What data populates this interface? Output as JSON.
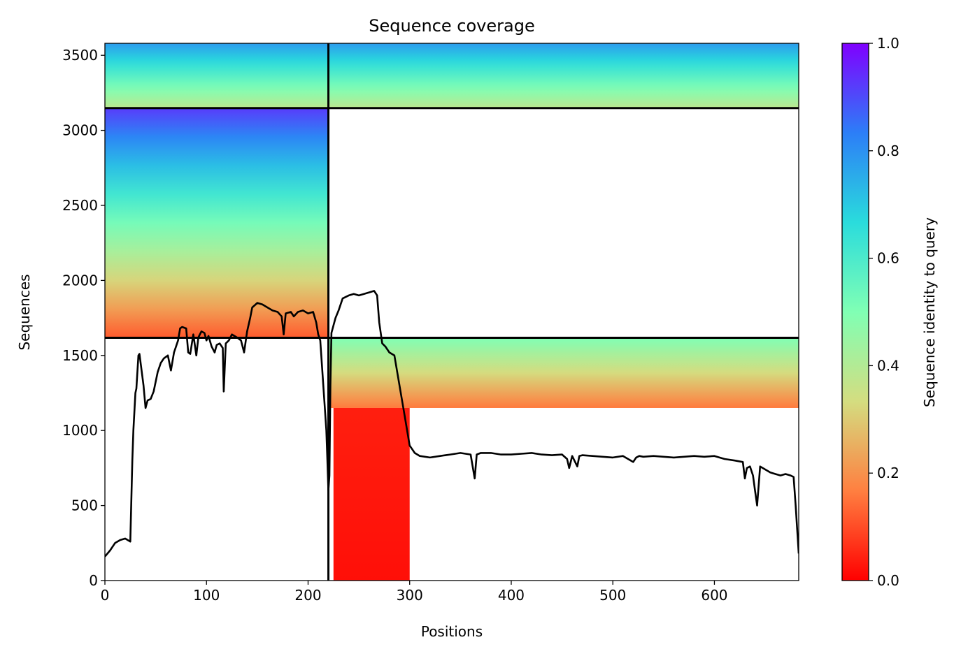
{
  "chart_data": {
    "type": "heatmap",
    "title": "Sequence coverage",
    "xlabel": "Positions",
    "ylabel": "Sequences",
    "xlim": [
      0,
      683
    ],
    "ylim": [
      0,
      3580
    ],
    "x_ticks": [
      0,
      100,
      200,
      300,
      400,
      500,
      600
    ],
    "y_ticks": [
      0,
      500,
      1000,
      1500,
      2000,
      2500,
      3000,
      3500
    ],
    "grid": false,
    "colormap": "rainbow_r",
    "colorbar": {
      "label": "Sequence identity to query",
      "range": [
        0,
        1
      ],
      "ticks": [
        "0.0",
        "0.2",
        "0.4",
        "0.6",
        "0.8",
        "1.0"
      ],
      "colors": [
        "#ff0000",
        "#ff7f40",
        "#d4dd80",
        "#80ffb4",
        "#2adcdc",
        "#2c7ef7",
        "#8000ff"
      ]
    },
    "divider_lines": {
      "color": "#000000",
      "vertical_x": [
        220
      ],
      "horizontal_y": [
        1618,
        3148
      ]
    },
    "coverage_blocks": [
      {
        "x0": 0,
        "x1": 220,
        "y0": 3148,
        "y1": 3580,
        "identity_range": [
          0.38,
          0.78
        ]
      },
      {
        "x0": 220,
        "x1": 683,
        "y0": 3148,
        "y1": 3580,
        "identity_range": [
          0.38,
          0.78
        ]
      },
      {
        "x0": 0,
        "x1": 220,
        "y0": 1618,
        "y1": 3148,
        "identity_range": [
          0.12,
          0.92
        ]
      },
      {
        "x0": 220,
        "x1": 683,
        "y0": 1150,
        "y1": 1618,
        "identity_range": [
          0.16,
          0.5
        ]
      },
      {
        "x0": 225,
        "x1": 300,
        "y0": 0,
        "y1": 1150,
        "identity_range": [
          0.02,
          0.04
        ]
      }
    ],
    "coverage_line": {
      "color": "#000000",
      "x": [
        0,
        5,
        10,
        15,
        20,
        25,
        27,
        28,
        30,
        31,
        33,
        34,
        38,
        40,
        42,
        45,
        48,
        52,
        55,
        58,
        62,
        65,
        68,
        70,
        72,
        74,
        76,
        80,
        82,
        84,
        87,
        90,
        92,
        95,
        98,
        100,
        102,
        105,
        108,
        110,
        113,
        116,
        117,
        119,
        122,
        125,
        130,
        134,
        137,
        140,
        143,
        145,
        150,
        155,
        160,
        165,
        170,
        174,
        176,
        178,
        183,
        186,
        190,
        195,
        200,
        205,
        208,
        210,
        212,
        214,
        216,
        218,
        219,
        220,
        221,
        222,
        223,
        225,
        227,
        230,
        234,
        240,
        245,
        250,
        255,
        260,
        265,
        268,
        270,
        273,
        276,
        280,
        285,
        290,
        295,
        300,
        305,
        310,
        320,
        330,
        340,
        350,
        360,
        364,
        366,
        370,
        380,
        390,
        400,
        410,
        420,
        430,
        440,
        450,
        455,
        457,
        460,
        465,
        467,
        470,
        480,
        490,
        500,
        510,
        520,
        523,
        526,
        530,
        540,
        550,
        560,
        570,
        580,
        590,
        600,
        610,
        620,
        628,
        630,
        632,
        635,
        638,
        640,
        642,
        645,
        650,
        655,
        660,
        665,
        670,
        675,
        678,
        680,
        683
      ],
      "y": [
        160,
        200,
        250,
        270,
        280,
        260,
        800,
        1000,
        1250,
        1280,
        1500,
        1510,
        1300,
        1150,
        1200,
        1210,
        1260,
        1390,
        1450,
        1480,
        1500,
        1400,
        1520,
        1560,
        1600,
        1680,
        1690,
        1680,
        1520,
        1510,
        1640,
        1500,
        1620,
        1660,
        1650,
        1600,
        1630,
        1560,
        1520,
        1570,
        1580,
        1550,
        1260,
        1580,
        1600,
        1640,
        1620,
        1600,
        1520,
        1660,
        1750,
        1820,
        1850,
        1840,
        1820,
        1800,
        1790,
        1760,
        1640,
        1780,
        1790,
        1760,
        1790,
        1800,
        1780,
        1790,
        1720,
        1640,
        1600,
        1400,
        1200,
        1000,
        800,
        600,
        700,
        1300,
        1650,
        1700,
        1750,
        1800,
        1880,
        1900,
        1910,
        1900,
        1910,
        1920,
        1930,
        1900,
        1720,
        1580,
        1560,
        1520,
        1500,
        1300,
        1100,
        900,
        850,
        830,
        820,
        830,
        840,
        850,
        840,
        680,
        840,
        850,
        850,
        840,
        840,
        845,
        850,
        840,
        835,
        840,
        810,
        750,
        830,
        760,
        830,
        835,
        830,
        825,
        820,
        830,
        790,
        820,
        830,
        825,
        830,
        825,
        820,
        825,
        830,
        825,
        830,
        810,
        800,
        790,
        680,
        750,
        760,
        700,
        600,
        500,
        760,
        740,
        720,
        710,
        700,
        710,
        700,
        690,
        500,
        180
      ]
    }
  }
}
